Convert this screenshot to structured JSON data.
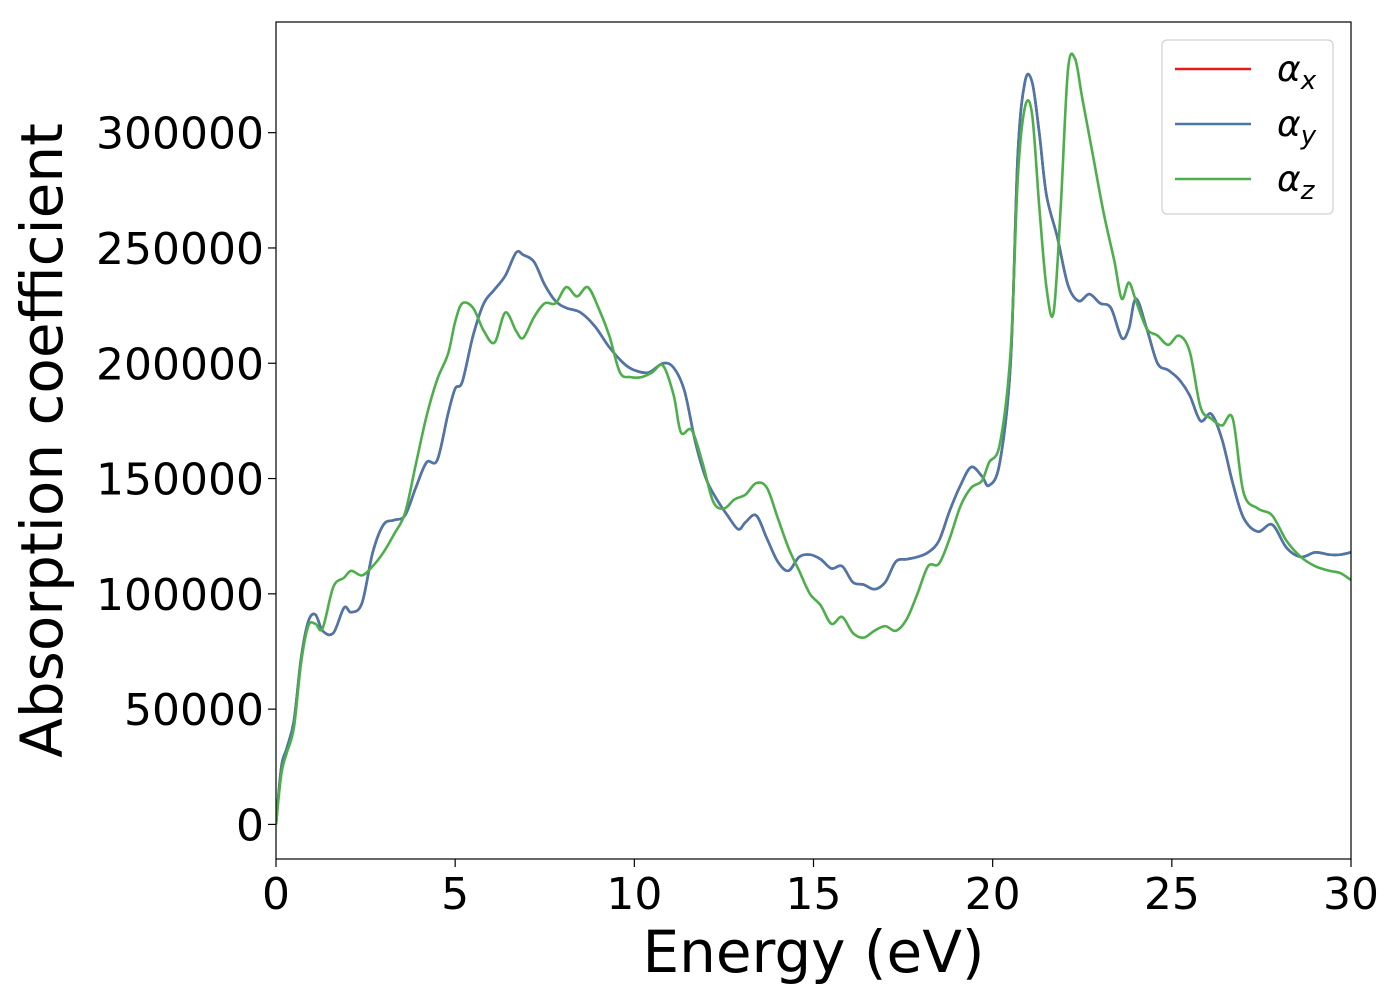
{
  "chart_data": {
    "type": "line",
    "title": "",
    "xlabel": "Energy (eV)",
    "ylabel": "Absorption coefficient",
    "xlim": [
      0,
      30
    ],
    "ylim": [
      -15000,
      348000
    ],
    "xticks": [
      0,
      5,
      10,
      15,
      20,
      25,
      30
    ],
    "xtick_labels": [
      "0",
      "5",
      "10",
      "15",
      "20",
      "25",
      "30"
    ],
    "yticks": [
      0,
      50000,
      100000,
      150000,
      200000,
      250000,
      300000
    ],
    "ytick_labels": [
      "0",
      "50000",
      "100000",
      "150000",
      "200000",
      "250000",
      "300000"
    ],
    "grid": false,
    "legend_position": "top-right",
    "series": [
      {
        "name": "αx",
        "symbol": "α",
        "subscript": "x",
        "color": "#e41a1c",
        "x": [
          0,
          0.15,
          0.3,
          0.5,
          0.7,
          0.9,
          1.1,
          1.3,
          1.6,
          1.9,
          2.1,
          2.4,
          2.7,
          3.0,
          3.3,
          3.6,
          3.9,
          4.2,
          4.5,
          4.8,
          5.0,
          5.2,
          5.5,
          5.8,
          6.1,
          6.4,
          6.7,
          6.9,
          7.2,
          7.5,
          7.8,
          8.1,
          8.5,
          8.9,
          9.3,
          9.7,
          10.0,
          10.4,
          10.8,
          11.1,
          11.4,
          11.7,
          12.0,
          12.3,
          12.6,
          12.9,
          13.1,
          13.4,
          13.7,
          14.0,
          14.3,
          14.6,
          14.9,
          15.2,
          15.5,
          15.8,
          16.1,
          16.4,
          16.7,
          17.0,
          17.3,
          17.6,
          17.9,
          18.2,
          18.5,
          18.8,
          19.1,
          19.4,
          19.7,
          19.9,
          20.2,
          20.5,
          20.7,
          20.9,
          21.1,
          21.3,
          21.5,
          21.8,
          22.1,
          22.4,
          22.7,
          23.0,
          23.3,
          23.6,
          23.8,
          24.0,
          24.3,
          24.6,
          24.9,
          25.2,
          25.5,
          25.8,
          26.1,
          26.4,
          26.7,
          27.0,
          27.4,
          27.8,
          28.2,
          28.6,
          29.0,
          29.4,
          29.7,
          30.0
        ],
        "y": [
          0,
          25000,
          33000,
          45000,
          72000,
          88000,
          91000,
          84000,
          83000,
          94000,
          92000,
          96000,
          118000,
          130000,
          132000,
          134000,
          146000,
          157000,
          158000,
          178000,
          189000,
          192000,
          212000,
          226000,
          232000,
          238000,
          248000,
          247000,
          244000,
          234000,
          227000,
          224000,
          222000,
          216000,
          207000,
          200000,
          197000,
          196000,
          200000,
          198000,
          188000,
          166000,
          150000,
          141000,
          134000,
          128000,
          131000,
          134000,
          124000,
          114000,
          110000,
          116000,
          117000,
          115000,
          111000,
          112000,
          105000,
          104000,
          102000,
          105000,
          114000,
          115000,
          116000,
          118000,
          123000,
          136000,
          147000,
          155000,
          151000,
          147000,
          157000,
          200000,
          290000,
          322000,
          322000,
          300000,
          273000,
          255000,
          234000,
          227000,
          230000,
          226000,
          224000,
          211000,
          215000,
          228000,
          215000,
          200000,
          197000,
          193000,
          186000,
          175000,
          178000,
          167000,
          148000,
          133000,
          127000,
          130000,
          120000,
          116000,
          118000,
          117000,
          117000,
          118000
        ]
      },
      {
        "name": "αy",
        "symbol": "α",
        "subscript": "y",
        "color": "#4a78ac",
        "x": [
          0,
          0.15,
          0.3,
          0.5,
          0.7,
          0.9,
          1.1,
          1.3,
          1.6,
          1.9,
          2.1,
          2.4,
          2.7,
          3.0,
          3.3,
          3.6,
          3.9,
          4.2,
          4.5,
          4.8,
          5.0,
          5.2,
          5.5,
          5.8,
          6.1,
          6.4,
          6.7,
          6.9,
          7.2,
          7.5,
          7.8,
          8.1,
          8.5,
          8.9,
          9.3,
          9.7,
          10.0,
          10.4,
          10.8,
          11.1,
          11.4,
          11.7,
          12.0,
          12.3,
          12.6,
          12.9,
          13.1,
          13.4,
          13.7,
          14.0,
          14.3,
          14.6,
          14.9,
          15.2,
          15.5,
          15.8,
          16.1,
          16.4,
          16.7,
          17.0,
          17.3,
          17.6,
          17.9,
          18.2,
          18.5,
          18.8,
          19.1,
          19.4,
          19.7,
          19.9,
          20.2,
          20.5,
          20.7,
          20.9,
          21.1,
          21.3,
          21.5,
          21.8,
          22.1,
          22.4,
          22.7,
          23.0,
          23.3,
          23.6,
          23.8,
          24.0,
          24.3,
          24.6,
          24.9,
          25.2,
          25.5,
          25.8,
          26.1,
          26.4,
          26.7,
          27.0,
          27.4,
          27.8,
          28.2,
          28.6,
          29.0,
          29.4,
          29.7,
          30.0
        ],
        "y": [
          0,
          25000,
          33000,
          45000,
          72000,
          88000,
          91000,
          84000,
          83000,
          94000,
          92000,
          96000,
          118000,
          130000,
          132000,
          134000,
          146000,
          157000,
          158000,
          178000,
          189000,
          192000,
          212000,
          226000,
          232000,
          238000,
          248000,
          247000,
          244000,
          234000,
          227000,
          224000,
          222000,
          216000,
          207000,
          200000,
          197000,
          196000,
          200000,
          198000,
          188000,
          166000,
          150000,
          141000,
          134000,
          128000,
          131000,
          134000,
          124000,
          114000,
          110000,
          116000,
          117000,
          115000,
          111000,
          112000,
          105000,
          104000,
          102000,
          105000,
          114000,
          115000,
          116000,
          118000,
          123000,
          136000,
          147000,
          155000,
          151000,
          147000,
          157000,
          200000,
          290000,
          322000,
          322000,
          300000,
          273000,
          255000,
          234000,
          227000,
          230000,
          226000,
          224000,
          211000,
          215000,
          228000,
          215000,
          200000,
          197000,
          193000,
          186000,
          175000,
          178000,
          167000,
          148000,
          133000,
          127000,
          130000,
          120000,
          116000,
          118000,
          117000,
          117000,
          118000
        ]
      },
      {
        "name": "αz",
        "symbol": "α",
        "subscript": "z",
        "color": "#4daf4a",
        "x": [
          0,
          0.15,
          0.3,
          0.5,
          0.7,
          0.9,
          1.1,
          1.3,
          1.6,
          1.9,
          2.1,
          2.4,
          2.7,
          3.0,
          3.3,
          3.6,
          3.9,
          4.2,
          4.5,
          4.8,
          5.0,
          5.2,
          5.5,
          5.8,
          6.1,
          6.4,
          6.7,
          6.9,
          7.2,
          7.5,
          7.8,
          8.1,
          8.4,
          8.7,
          9.0,
          9.3,
          9.6,
          9.9,
          10.2,
          10.5,
          10.8,
          11.1,
          11.3,
          11.6,
          11.9,
          12.2,
          12.5,
          12.8,
          13.1,
          13.4,
          13.7,
          14.0,
          14.3,
          14.6,
          14.9,
          15.2,
          15.5,
          15.8,
          16.1,
          16.4,
          16.7,
          17.0,
          17.3,
          17.6,
          17.9,
          18.2,
          18.5,
          18.8,
          19.1,
          19.4,
          19.7,
          19.9,
          20.2,
          20.5,
          20.7,
          20.9,
          21.1,
          21.3,
          21.5,
          21.7,
          21.9,
          22.1,
          22.3,
          22.5,
          22.8,
          23.1,
          23.4,
          23.6,
          23.8,
          24.0,
          24.3,
          24.6,
          24.9,
          25.2,
          25.5,
          25.8,
          26.1,
          26.4,
          26.7,
          27.0,
          27.4,
          27.8,
          28.2,
          28.6,
          29.0,
          29.4,
          29.7,
          30.0
        ],
        "y": [
          0,
          22000,
          31000,
          42000,
          70000,
          86000,
          87000,
          85000,
          103000,
          107000,
          110000,
          108000,
          112000,
          118000,
          126000,
          135000,
          156000,
          177000,
          193000,
          204000,
          218000,
          226000,
          224000,
          214000,
          209000,
          222000,
          214000,
          211000,
          220000,
          226000,
          226000,
          233000,
          229000,
          233000,
          224000,
          212000,
          196000,
          194000,
          194000,
          196000,
          199000,
          186000,
          170000,
          171000,
          157000,
          140000,
          137000,
          141000,
          143000,
          148000,
          146000,
          133000,
          120000,
          110000,
          100000,
          95000,
          87000,
          90000,
          83000,
          81000,
          84000,
          86000,
          84000,
          89000,
          100000,
          112000,
          113000,
          124000,
          138000,
          146000,
          149000,
          157000,
          165000,
          205000,
          280000,
          311000,
          308000,
          268000,
          233000,
          222000,
          268000,
          327000,
          332000,
          315000,
          290000,
          265000,
          244000,
          228000,
          235000,
          227000,
          215000,
          212000,
          208000,
          212000,
          205000,
          181000,
          176000,
          173000,
          176000,
          144000,
          137000,
          134000,
          123000,
          116000,
          112000,
          110000,
          109000,
          106000
        ]
      }
    ]
  }
}
